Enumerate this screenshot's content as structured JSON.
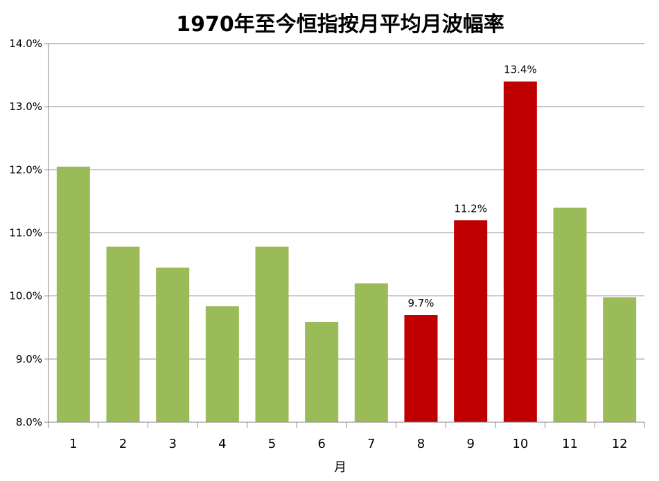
{
  "chart_data": {
    "type": "bar",
    "title": "1970年至今恒指按月平均月波幅率",
    "xlabel": "月",
    "ylabel": "",
    "categories": [
      "1",
      "2",
      "3",
      "4",
      "5",
      "6",
      "7",
      "8",
      "9",
      "10",
      "11",
      "12"
    ],
    "values": [
      12.05,
      10.78,
      10.45,
      9.84,
      10.78,
      9.59,
      10.2,
      9.7,
      11.2,
      13.4,
      11.4,
      9.98
    ],
    "highlighted": [
      false,
      false,
      false,
      false,
      false,
      false,
      false,
      true,
      true,
      true,
      false,
      false
    ],
    "data_labels": [
      "",
      "",
      "",
      "",
      "",
      "",
      "",
      "9.7%",
      "11.2%",
      "13.4%",
      "",
      ""
    ],
    "ylim": [
      8.0,
      14.0
    ],
    "yticks": [
      8.0,
      9.0,
      10.0,
      11.0,
      12.0,
      13.0,
      14.0
    ],
    "ytick_labels": [
      "8.0%",
      "9.0%",
      "10.0%",
      "11.0%",
      "12.0%",
      "13.0%",
      "14.0%"
    ],
    "grid": true,
    "legend": "none",
    "colors": {
      "normal": "#9bbb59",
      "highlight": "#c00000",
      "grid": "#868686",
      "axis": "#868686"
    }
  }
}
